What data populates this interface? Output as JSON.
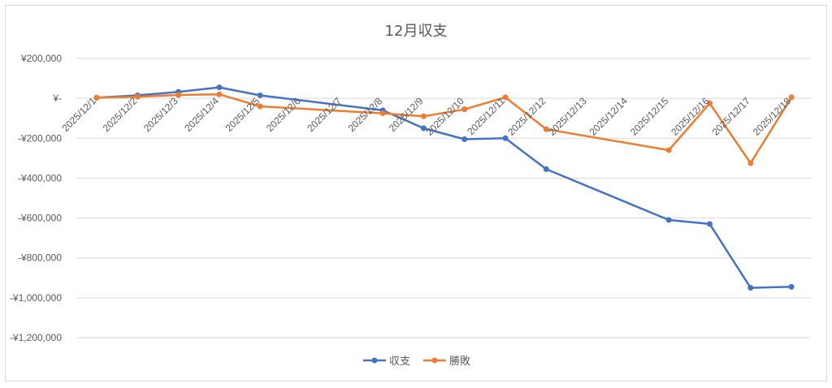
{
  "chart_data": {
    "type": "line",
    "title": "12月収支",
    "xlabel": "",
    "ylabel": "",
    "categories": [
      "2025/12/1",
      "2025/12/2",
      "2025/12/3",
      "2025/12/4",
      "2025/12/5",
      "2025/12/6",
      "2025/12/7",
      "2025/12/8",
      "2025/12/9",
      "2025/12/10",
      "2025/12/11",
      "2025/12/12",
      "2025/12/13",
      "2025/12/14",
      "2025/12/15",
      "2025/12/16",
      "2025/12/17",
      "2025/12/18"
    ],
    "ylim": [
      -1200000,
      200000
    ],
    "yticks": [
      200000,
      0,
      -200000,
      -400000,
      -600000,
      -800000,
      -1000000,
      -1200000
    ],
    "ytick_labels": [
      "¥200,000",
      "¥-",
      "-¥200,000",
      "-¥400,000",
      "-¥600,000",
      "-¥800,000",
      "-¥1,000,000",
      "-¥1,200,000"
    ],
    "grid": true,
    "legend_position": "bottom",
    "series": [
      {
        "name": "収支",
        "color": "#4472C4",
        "points": [
          {
            "x": "2025/12/1",
            "y": 3000
          },
          {
            "x": "2025/12/2",
            "y": 15000
          },
          {
            "x": "2025/12/3",
            "y": 32000
          },
          {
            "x": "2025/12/4",
            "y": 55000
          },
          {
            "x": "2025/12/5",
            "y": 15000
          },
          {
            "x": "2025/12/8",
            "y": -60000
          },
          {
            "x": "2025/12/9",
            "y": -150000
          },
          {
            "x": "2025/12/10",
            "y": -205000
          },
          {
            "x": "2025/12/11",
            "y": -200000
          },
          {
            "x": "2025/12/12",
            "y": -355000
          },
          {
            "x": "2025/12/15",
            "y": -610000
          },
          {
            "x": "2025/12/16",
            "y": -630000
          },
          {
            "x": "2025/12/17",
            "y": -950000
          },
          {
            "x": "2025/12/18",
            "y": -945000
          }
        ]
      },
      {
        "name": "勝敗",
        "color": "#ED7D31",
        "points": [
          {
            "x": "2025/12/1",
            "y": 3000
          },
          {
            "x": "2025/12/2",
            "y": 8000
          },
          {
            "x": "2025/12/3",
            "y": 17000
          },
          {
            "x": "2025/12/4",
            "y": 20000
          },
          {
            "x": "2025/12/5",
            "y": -40000
          },
          {
            "x": "2025/12/8",
            "y": -75000
          },
          {
            "x": "2025/12/9",
            "y": -90000
          },
          {
            "x": "2025/12/10",
            "y": -55000
          },
          {
            "x": "2025/12/11",
            "y": 5000
          },
          {
            "x": "2025/12/12",
            "y": -155000
          },
          {
            "x": "2025/12/15",
            "y": -260000
          },
          {
            "x": "2025/12/16",
            "y": -25000
          },
          {
            "x": "2025/12/17",
            "y": -325000
          },
          {
            "x": "2025/12/18",
            "y": 5000
          }
        ]
      }
    ]
  }
}
